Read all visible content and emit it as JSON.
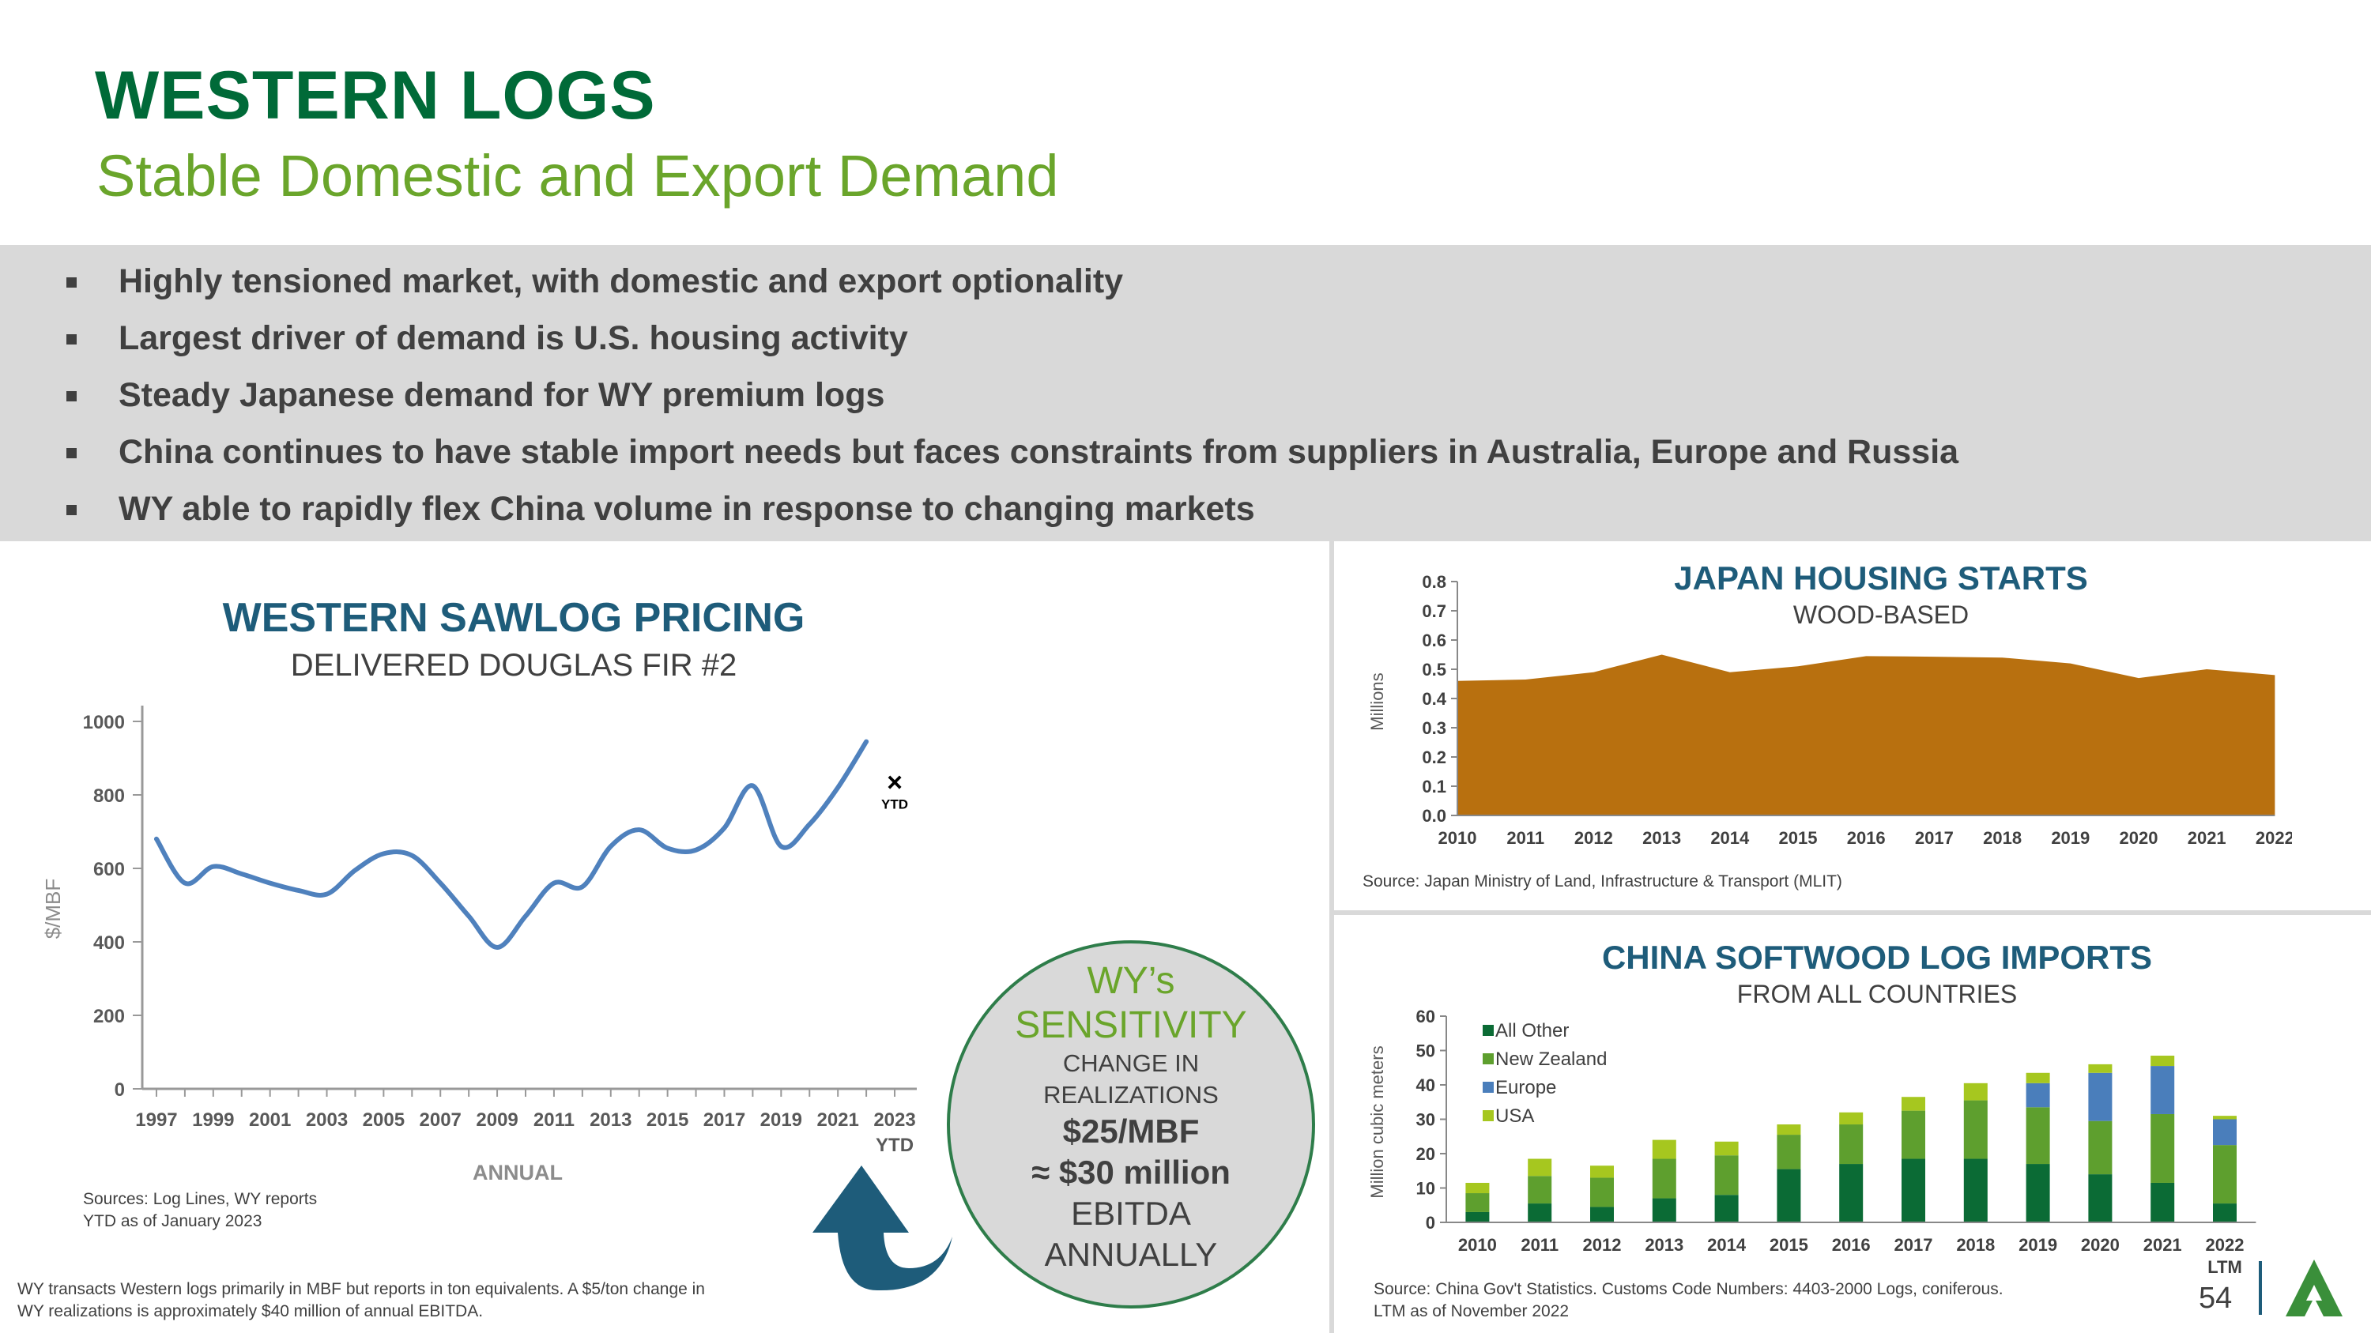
{
  "header": {
    "title": "WESTERN LOGS",
    "subtitle": "Stable Domestic and Export Demand"
  },
  "bullets": [
    "Highly tensioned market, with domestic and export optionality",
    "Largest driver of demand is U.S. housing activity",
    "Steady Japanese demand for WY premium logs",
    "China continues to have stable import needs but faces constraints from suppliers in Australia, Europe and Russia",
    "WY able to rapidly flex China volume in response to changing markets"
  ],
  "sawlog": {
    "heading": "WESTERN SAWLOG PRICING",
    "subheading": "DELIVERED DOUGLAS FIR #2",
    "ytd_marker": "×",
    "ytd_label": "YTD",
    "sources": "Sources: Log Lines, WY reports",
    "ytd_note": "YTD as of January 2023",
    "footnote_1": "WY transacts Western logs primarily in MBF but reports in ton equivalents. A $5/ton change in",
    "footnote_2": "WY realizations is approximately $40 million of annual EBITDA."
  },
  "sensitivity": {
    "line1": "WY’s",
    "line2": "SENSITIVITY",
    "line3": "CHANGE IN",
    "line4": "REALIZATIONS",
    "line5": "$25/MBF",
    "line6": "≈ $30 million",
    "line7": "EBITDA",
    "line8": "ANNUALLY"
  },
  "japan": {
    "heading": "JAPAN HOUSING STARTS",
    "subheading": "WOOD-BASED",
    "source": "Source: Japan Ministry of Land, Infrastructure & Transport (MLIT)"
  },
  "china": {
    "heading": "CHINA SOFTWOOD LOG IMPORTS",
    "subheading": "FROM ALL COUNTRIES",
    "source_1": "Source: China Gov't Statistics. Customs Code Numbers: 4403-2000 Logs, coniferous.",
    "source_2": "LTM as of November 2022"
  },
  "page_number": "54",
  "colors": {
    "title_green": "#006a38",
    "subtitle_green": "#6aa52b",
    "heading_blue": "#1e5c7a",
    "line_blue": "#4f81bd",
    "area_brown": "#b8700f",
    "bar_dark_green": "#0b6b35",
    "bar_green": "#5e9f2e",
    "bar_blue": "#4a7ebb",
    "bar_lime": "#a6c71f",
    "arrow_blue": "#1e5c7a"
  },
  "chart_data": [
    {
      "type": "line",
      "ylabel": "$/MBF",
      "xlabel": "ANNUAL",
      "ylim": [
        0,
        1000
      ],
      "yticks": [
        0,
        200,
        400,
        600,
        800,
        1000
      ],
      "xtick_labels": [
        "1997",
        "1999",
        "2001",
        "2003",
        "2005",
        "2007",
        "2009",
        "2011",
        "2013",
        "2015",
        "2017",
        "2019",
        "2021",
        "2023"
      ],
      "xtick_sublabel": "YTD",
      "x": [
        1997,
        1998,
        1999,
        2000,
        2001,
        2002,
        2003,
        2004,
        2005,
        2006,
        2007,
        2008,
        2009,
        2010,
        2011,
        2012,
        2013,
        2014,
        2015,
        2016,
        2017,
        2018,
        2019,
        2020,
        2021,
        2022
      ],
      "values": [
        680,
        560,
        605,
        585,
        560,
        540,
        530,
        595,
        640,
        635,
        560,
        470,
        385,
        470,
        560,
        550,
        660,
        705,
        655,
        650,
        710,
        825,
        660,
        720,
        820,
        945
      ],
      "ytd": {
        "x": 2023,
        "value": 835
      },
      "grid": false
    },
    {
      "type": "area",
      "ylabel": "Millions",
      "ylim": [
        0,
        0.8
      ],
      "yticks": [
        "0.0",
        "0.1",
        "0.2",
        "0.3",
        "0.4",
        "0.5",
        "0.6",
        "0.7",
        "0.8"
      ],
      "x": [
        "2010",
        "2011",
        "2012",
        "2013",
        "2014",
        "2015",
        "2016",
        "2017",
        "2018",
        "2019",
        "2020",
        "2021",
        "2022"
      ],
      "values": [
        0.46,
        0.465,
        0.49,
        0.55,
        0.49,
        0.51,
        0.545,
        0.543,
        0.54,
        0.52,
        0.47,
        0.5,
        0.48
      ],
      "grid": false
    },
    {
      "type": "bar",
      "stacked": true,
      "ylabel": "Million cubic meters",
      "ylim": [
        0,
        60
      ],
      "yticks": [
        0,
        10,
        20,
        30,
        40,
        50,
        60
      ],
      "categories": [
        "2010",
        "2011",
        "2012",
        "2013",
        "2014",
        "2015",
        "2016",
        "2017",
        "2018",
        "2019",
        "2020",
        "2021",
        "2022"
      ],
      "category_sublabel": "LTM",
      "legend_position": "top-left",
      "series": [
        {
          "name": "All Other",
          "color": "#0b6b35",
          "values": [
            3,
            5.5,
            4.5,
            7,
            8,
            15.5,
            17,
            18.5,
            18.5,
            17,
            14,
            11.5,
            5.5
          ]
        },
        {
          "name": "New Zealand",
          "color": "#5e9f2e",
          "values": [
            5.5,
            8,
            8.5,
            11.5,
            11.5,
            10,
            11.5,
            14,
            17,
            16.5,
            15.5,
            20,
            17
          ]
        },
        {
          "name": "Europe",
          "color": "#4a7ebb",
          "values": [
            0,
            0,
            0,
            0,
            0,
            0,
            0,
            0,
            0,
            7,
            14,
            14,
            7.5
          ]
        },
        {
          "name": "USA",
          "color": "#a6c71f",
          "values": [
            3,
            5,
            3.5,
            5.5,
            4,
            3,
            3.5,
            4,
            5,
            3,
            2.5,
            3,
            1
          ]
        }
      ]
    }
  ]
}
